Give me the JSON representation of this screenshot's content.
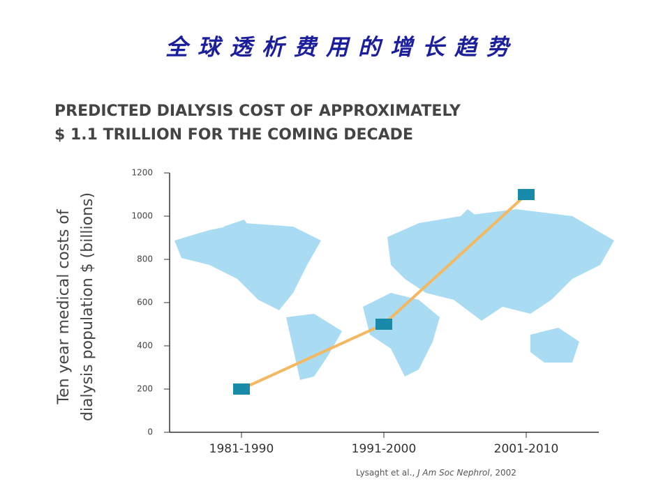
{
  "slide_title": "全球透析费用的增长趋势",
  "chart_data": {
    "type": "line",
    "title": [
      "PREDICTED DIALYSIS COST OF APPROXIMATELY",
      "$ 1.1 TRILLION FOR THE COMING DECADE"
    ],
    "y_label": [
      "Ten year medical costs of",
      "dialysis population $ (billions)"
    ],
    "categories": [
      "1981-1990",
      "1991-2000",
      "2001-2010"
    ],
    "values": [
      200,
      500,
      1100
    ],
    "color": "#f4b860",
    "marker_color": "#1a8aaa",
    "ylim": [
      0,
      1200
    ],
    "yticks": [
      0,
      200,
      400,
      600,
      800,
      1000,
      1200
    ],
    "source": [
      "Lysaght et al., ",
      "J Am Soc Nephrol",
      ", 2002"
    ]
  }
}
